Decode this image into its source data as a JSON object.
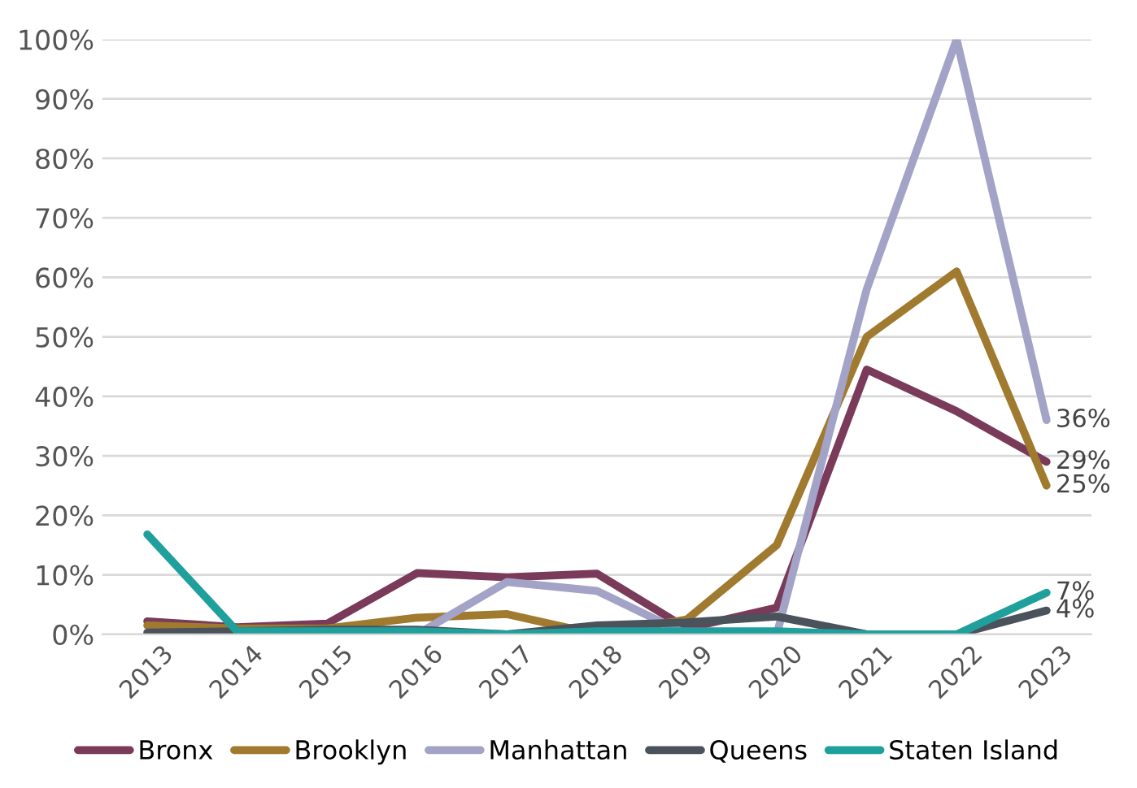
{
  "chart_data": {
    "type": "line",
    "categories": [
      "2013",
      "2014",
      "2015",
      "2016",
      "2017",
      "2018",
      "2019",
      "2020",
      "2021",
      "2022",
      "2023"
    ],
    "series": [
      {
        "name": "Bronx",
        "color": "#7a3b5a",
        "values": [
          2.2,
          1.2,
          1.8,
          10.3,
          9.6,
          10.2,
          1,
          4.5,
          44.5,
          37.5,
          29
        ],
        "value_labels": [
          null,
          null,
          null,
          null,
          null,
          null,
          null,
          null,
          null,
          null,
          "29%"
        ]
      },
      {
        "name": "Brooklyn",
        "color": "#a07a2e",
        "values": [
          1.5,
          1,
          1,
          2.8,
          3.4,
          0,
          2.5,
          15,
          50,
          61,
          25
        ],
        "value_labels": [
          null,
          null,
          null,
          null,
          null,
          null,
          null,
          null,
          null,
          null,
          "25%"
        ]
      },
      {
        "name": "Manhattan",
        "color": "#a3a3c8",
        "values": [
          0,
          0,
          0,
          0,
          8.8,
          7.3,
          0,
          0,
          58,
          100,
          36
        ],
        "value_labels": [
          null,
          null,
          null,
          null,
          null,
          null,
          null,
          null,
          null,
          null,
          "36%"
        ]
      },
      {
        "name": "Queens",
        "color": "#4a525c",
        "values": [
          0.3,
          0.5,
          0.8,
          0.8,
          0,
          1.5,
          2,
          3,
          0,
          0,
          4
        ],
        "value_labels": [
          null,
          null,
          null,
          null,
          null,
          null,
          null,
          null,
          null,
          null,
          "4%"
        ]
      },
      {
        "name": "Staten Island",
        "color": "#20a09c",
        "values": [
          16.8,
          0.5,
          0.5,
          0.5,
          0,
          0.5,
          0.5,
          0.5,
          0,
          0,
          7
        ],
        "value_labels": [
          null,
          null,
          null,
          null,
          null,
          null,
          null,
          null,
          null,
          null,
          "7%"
        ]
      }
    ],
    "ylim": [
      0,
      100
    ],
    "yticks": [
      {
        "value": 0,
        "label": "0%"
      },
      {
        "value": 10,
        "label": "10%"
      },
      {
        "value": 20,
        "label": "20%"
      },
      {
        "value": 30,
        "label": "30%"
      },
      {
        "value": 40,
        "label": "40%"
      },
      {
        "value": 50,
        "label": "50%"
      },
      {
        "value": 60,
        "label": "60%"
      },
      {
        "value": 70,
        "label": "70%"
      },
      {
        "value": 80,
        "label": "80%"
      },
      {
        "value": 90,
        "label": "90%"
      },
      {
        "value": 100,
        "label": "100%"
      }
    ],
    "grid": "y",
    "legend": "bottom",
    "marker": "none",
    "line_style": "solid"
  }
}
